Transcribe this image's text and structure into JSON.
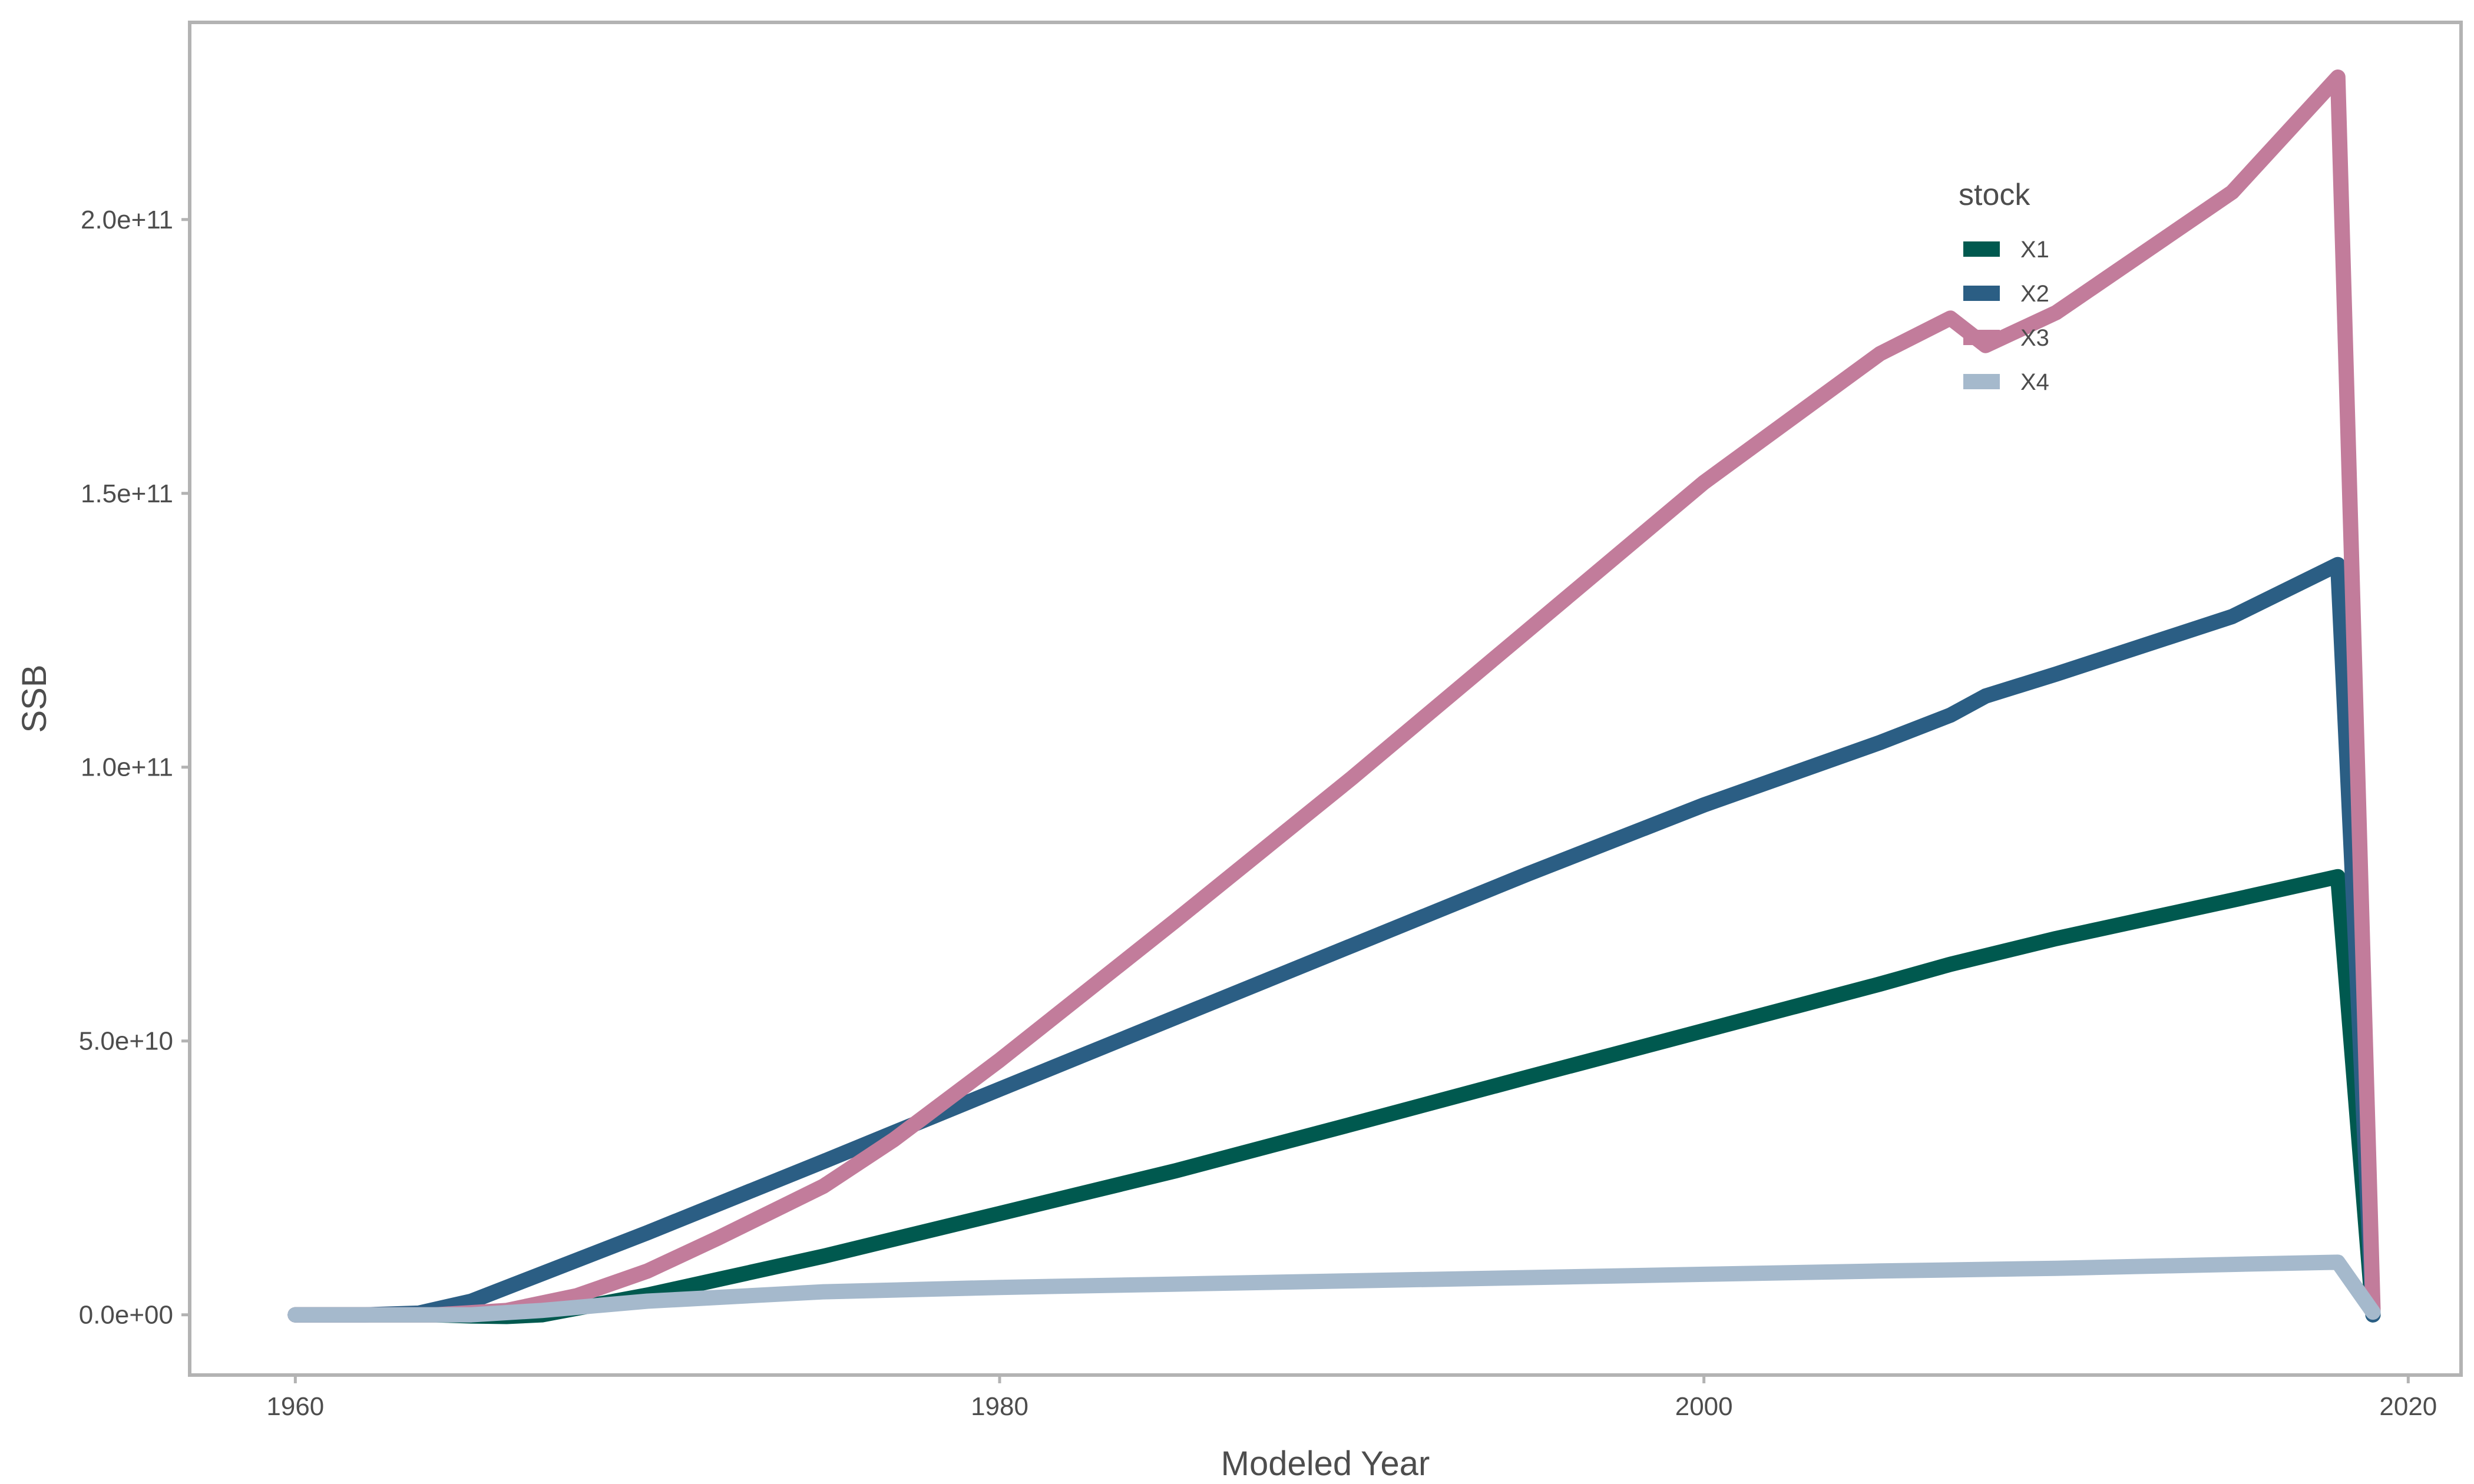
{
  "chart_data": {
    "type": "line",
    "xlabel": "Modeled Year",
    "ylabel": "SSB",
    "xlim": [
      1957.0,
      2021.5
    ],
    "ylim": [
      -11000000000,
      236000000000
    ],
    "x_ticks": [
      1960,
      1980,
      2000,
      2020
    ],
    "x_tick_labels": [
      "1960",
      "1980",
      "2000",
      "2020"
    ],
    "y_ticks": [
      0,
      50000000000,
      100000000000,
      150000000000,
      200000000000
    ],
    "y_tick_labels": [
      "0.0e+00",
      "5.0e+10",
      "1.0e+11",
      "1.5e+11",
      "2.0e+11"
    ],
    "grid": false,
    "legend": {
      "title": "stock",
      "position": "top-right (inside plot)"
    },
    "series": [
      {
        "name": "X1",
        "color": "#00594f",
        "points": [
          [
            1960,
            0
          ],
          [
            1962,
            0
          ],
          [
            1964,
            0
          ],
          [
            1965,
            -200000000
          ],
          [
            1966,
            -300000000
          ],
          [
            1967,
            0
          ],
          [
            1968,
            1200000000
          ],
          [
            1970,
            3600000000
          ],
          [
            1975,
            10700000000
          ],
          [
            1980,
            18500000000
          ],
          [
            1985,
            26300000000
          ],
          [
            1990,
            34800000000
          ],
          [
            1995,
            43400000000
          ],
          [
            2000,
            51900000000
          ],
          [
            2005,
            60400000000
          ],
          [
            2007,
            64000000000
          ],
          [
            2010,
            68700000000
          ],
          [
            2015,
            75700000000
          ],
          [
            2018,
            80000000000
          ],
          [
            2019,
            0
          ]
        ]
      },
      {
        "name": "X2",
        "color": "#2b5e84",
        "points": [
          [
            1960,
            0
          ],
          [
            1962,
            0
          ],
          [
            1963.5,
            300000000
          ],
          [
            1965,
            2500000000
          ],
          [
            1967,
            7500000000
          ],
          [
            1970,
            15000000000
          ],
          [
            1975,
            28000000000
          ],
          [
            1980,
            41200000000
          ],
          [
            1985,
            54300000000
          ],
          [
            1990,
            67400000000
          ],
          [
            1995,
            80500000000
          ],
          [
            2000,
            93100000000
          ],
          [
            2005,
            104500000000
          ],
          [
            2007,
            109500000000
          ],
          [
            2008,
            113000000000
          ],
          [
            2010,
            117000000000
          ],
          [
            2015,
            127500000000
          ],
          [
            2018,
            137000000000
          ],
          [
            2019,
            0
          ]
        ]
      },
      {
        "name": "X3",
        "color": "#c27c9b",
        "points": [
          [
            1960,
            0
          ],
          [
            1962,
            0
          ],
          [
            1964,
            0
          ],
          [
            1966,
            800000000
          ],
          [
            1968,
            3500000000
          ],
          [
            1970,
            8000000000
          ],
          [
            1972,
            14000000000
          ],
          [
            1975,
            23500000000
          ],
          [
            1977,
            32000000000
          ],
          [
            1980,
            46500000000
          ],
          [
            1985,
            72000000000
          ],
          [
            1990,
            98000000000
          ],
          [
            1995,
            125000000000
          ],
          [
            2000,
            152000000000
          ],
          [
            2005,
            175500000000
          ],
          [
            2007,
            182000000000
          ],
          [
            2008,
            177000000000
          ],
          [
            2010,
            183000000000
          ],
          [
            2015,
            205000000000
          ],
          [
            2018,
            226000000000
          ],
          [
            2019,
            1000000000
          ]
        ]
      },
      {
        "name": "X4",
        "color": "#a5b9cc",
        "points": [
          [
            1960,
            0
          ],
          [
            1962,
            0
          ],
          [
            1965,
            0
          ],
          [
            1967,
            800000000
          ],
          [
            1970,
            2500000000
          ],
          [
            1975,
            4200000000
          ],
          [
            1980,
            5000000000
          ],
          [
            1985,
            5600000000
          ],
          [
            1990,
            6200000000
          ],
          [
            1995,
            6800000000
          ],
          [
            2000,
            7400000000
          ],
          [
            2005,
            8000000000
          ],
          [
            2010,
            8500000000
          ],
          [
            2015,
            9200000000
          ],
          [
            2018,
            9600000000
          ],
          [
            2019,
            500000000
          ]
        ]
      }
    ]
  }
}
